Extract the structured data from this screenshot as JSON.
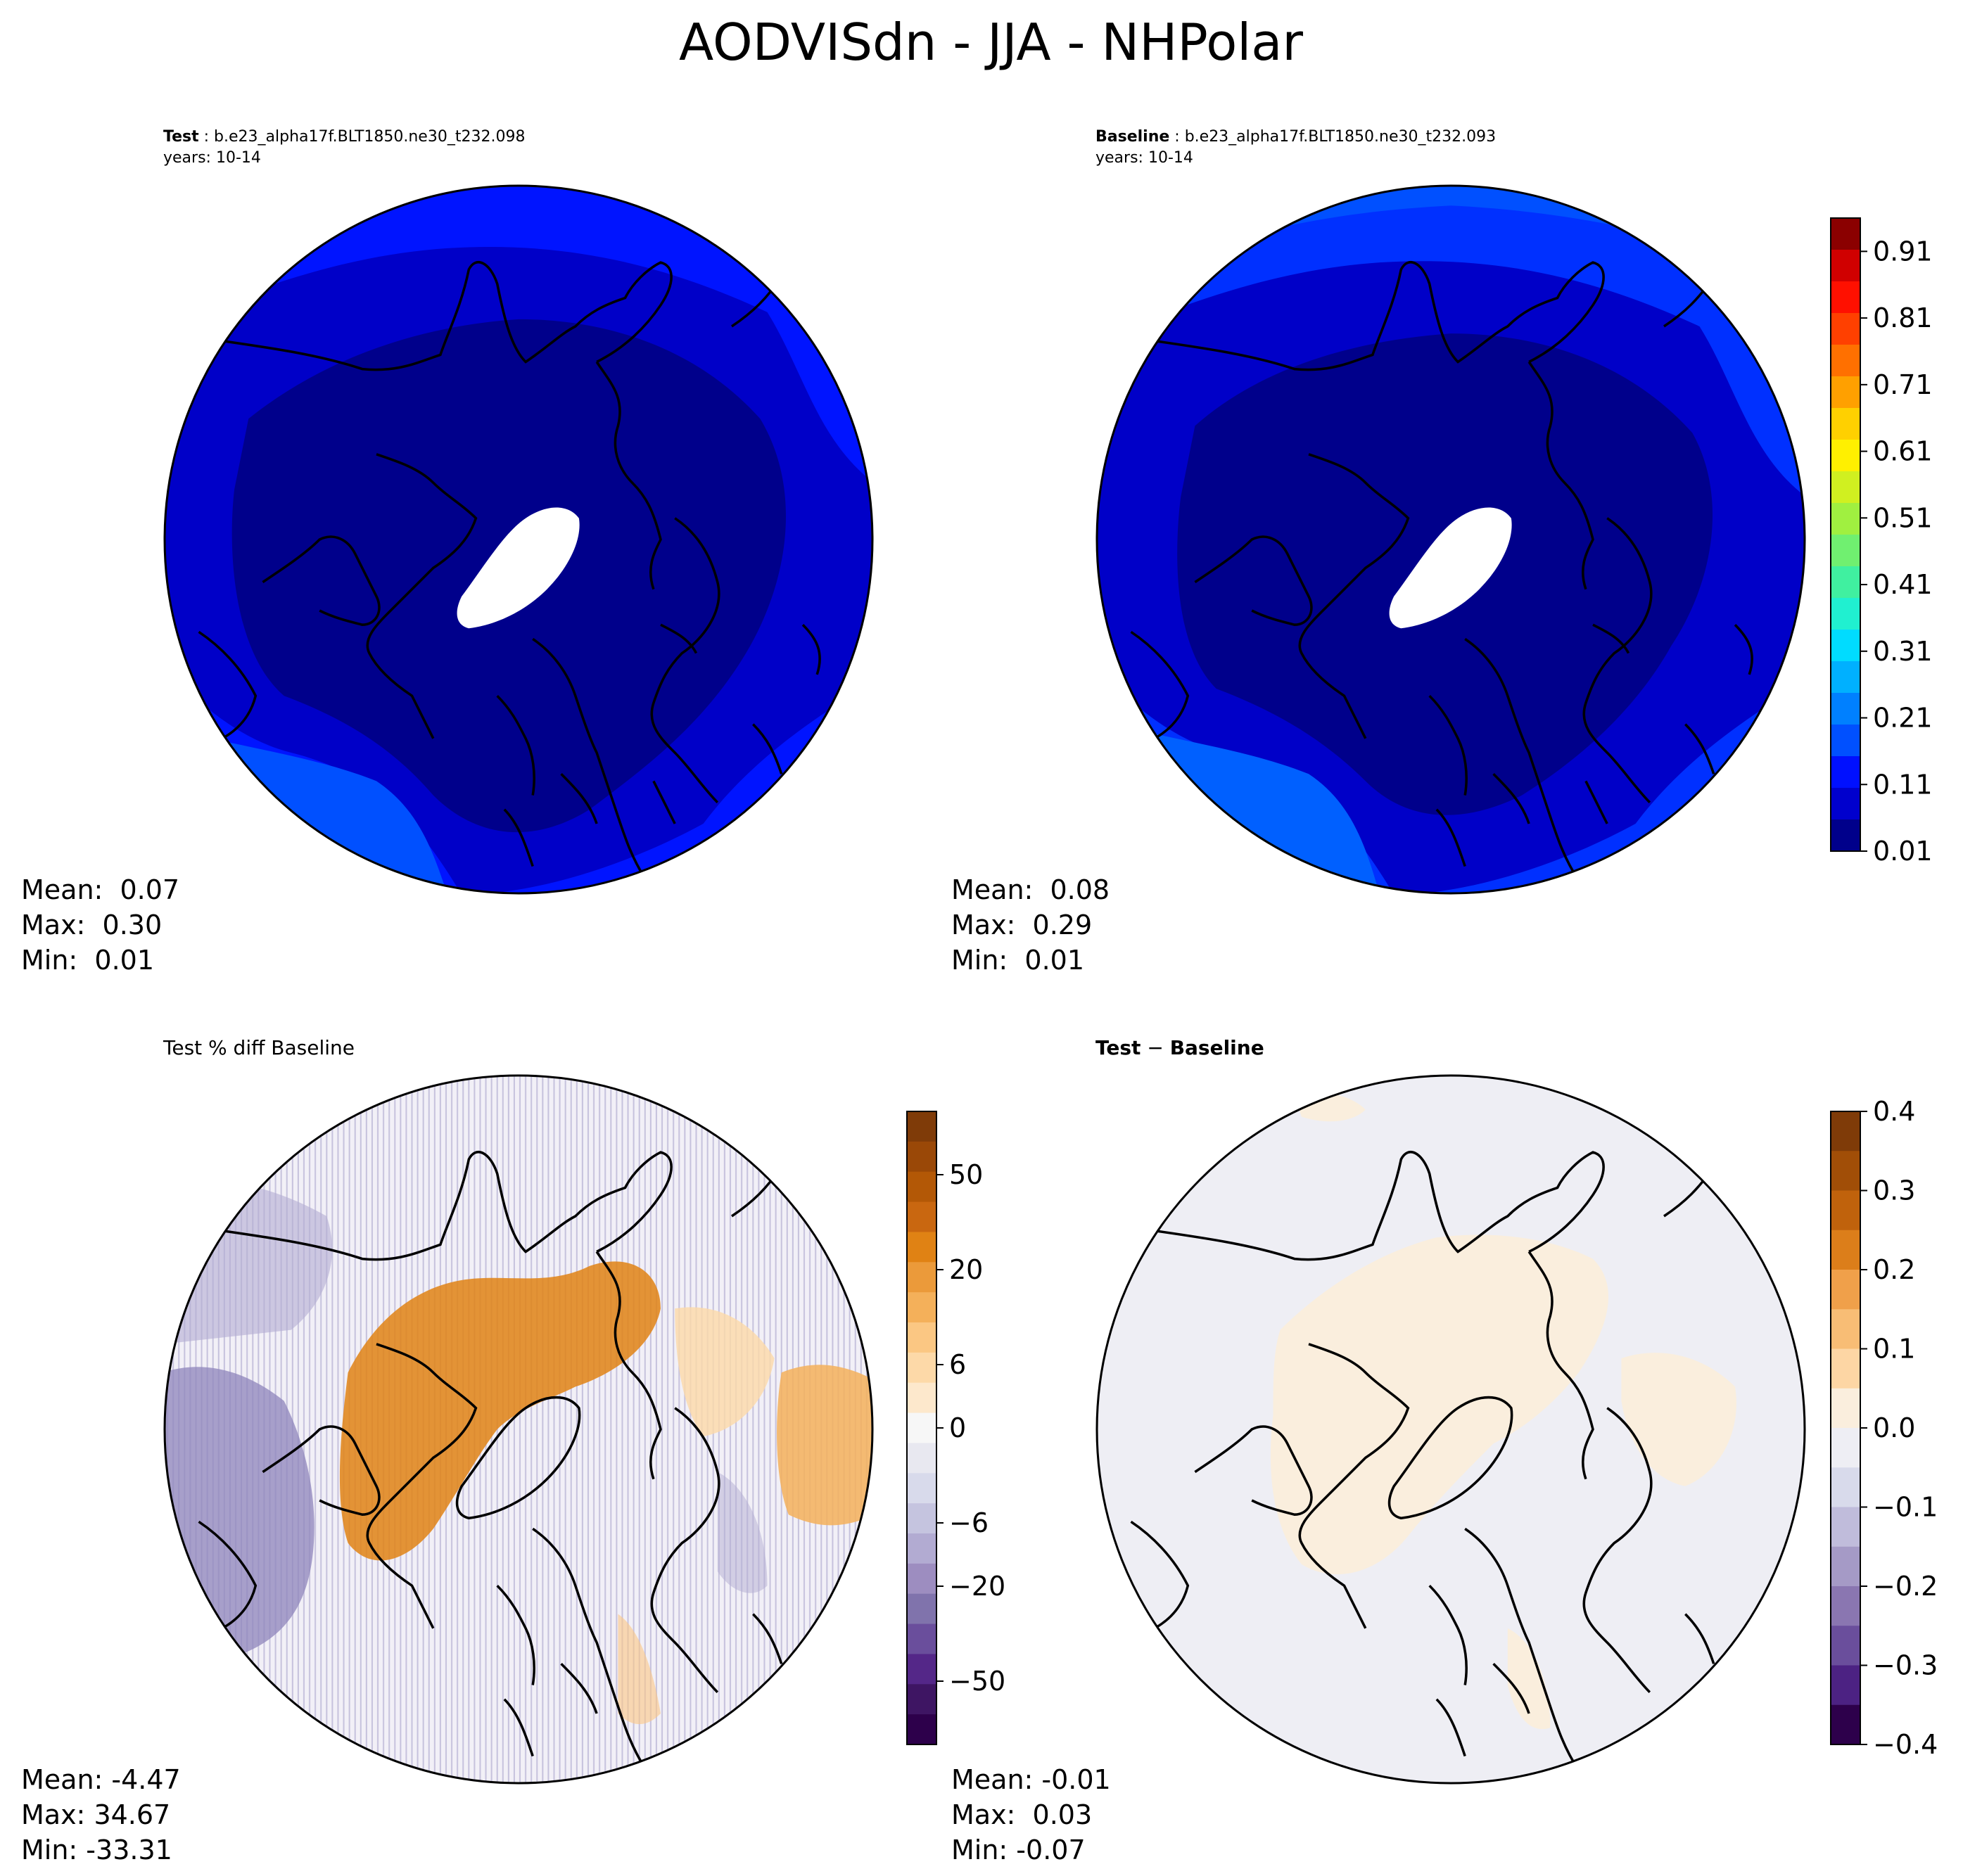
{
  "suptitle": "AODVISdn - JJA - NHPolar",
  "panels": {
    "test": {
      "label_bold": "Test",
      "case": " : b.e23_alpha17f.BLT1850.ne30_t232.098",
      "years": "years: 10-14",
      "stats": {
        "mean": "Mean:  0.07",
        "max": "Max:  0.30",
        "min": "Min:  0.01"
      }
    },
    "baseline": {
      "label_bold": "Baseline",
      "case": " : b.e23_alpha17f.BLT1850.ne30_t232.093",
      "years": "years: 10-14",
      "stats": {
        "mean": "Mean:  0.08",
        "max": "Max:  0.29",
        "min": "Min:  0.01"
      }
    },
    "pctdiff": {
      "title": "Test % diff Baseline",
      "stats": {
        "mean": "Mean: -4.47",
        "max": "Max: 34.67",
        "min": "Min: -33.31"
      }
    },
    "diff": {
      "title_a": "Test",
      "title_op": " − ",
      "title_b": "Baseline",
      "stats": {
        "mean": "Mean: -0.01",
        "max": "Max:  0.03",
        "min": "Min: -0.07"
      }
    }
  },
  "chart_data": [
    {
      "type": "heatmap",
      "projection": "north polar stereographic",
      "field": "AODVISdn",
      "season": "JJA",
      "panel": "Test",
      "mean": 0.07,
      "max": 0.3,
      "min": 0.01
    },
    {
      "type": "heatmap",
      "projection": "north polar stereographic",
      "field": "AODVISdn",
      "season": "JJA",
      "panel": "Baseline",
      "mean": 0.08,
      "max": 0.29,
      "min": 0.01,
      "colorbar": {
        "ticks": [
          "0.01",
          "0.11",
          "0.21",
          "0.31",
          "0.41",
          "0.51",
          "0.61",
          "0.71",
          "0.81",
          "0.91"
        ],
        "range": [
          0.01,
          0.96
        ],
        "colors": [
          "#00008b",
          "#0000cd",
          "#0010ff",
          "#0050ff",
          "#0080ff",
          "#00b0ff",
          "#00dcff",
          "#20f0d0",
          "#40f0a0",
          "#70f070",
          "#a0f040",
          "#d0f020",
          "#fff000",
          "#ffd000",
          "#ffa000",
          "#ff7000",
          "#ff4000",
          "#ff1000",
          "#d00000",
          "#8b0000"
        ]
      }
    },
    {
      "type": "heatmap",
      "projection": "north polar stereographic",
      "panel": "Test % diff Baseline",
      "mean": -4.47,
      "max": 34.67,
      "min": -33.31,
      "colorbar": {
        "ticks": [
          "50",
          "20",
          "6",
          "0",
          "−6",
          "−20",
          "−50"
        ],
        "range": [
          -100,
          100
        ],
        "colors": [
          "#7f3b08",
          "#9a4807",
          "#b35806",
          "#c96710",
          "#e08214",
          "#eb9a3a",
          "#f4b05a",
          "#fbc783",
          "#fdd9a8",
          "#fde8cc",
          "#f7f7f7",
          "#e8e8f0",
          "#d8daeb",
          "#c5c4df",
          "#b2abd2",
          "#9d8dc0",
          "#8073ac",
          "#6a4e9c",
          "#542788",
          "#3e1563",
          "#2d004b"
        ]
      }
    },
    {
      "type": "heatmap",
      "projection": "north polar stereographic",
      "panel": "Test − Baseline",
      "mean": -0.01,
      "max": 0.03,
      "min": -0.07,
      "colorbar": {
        "ticks": [
          "0.4",
          "0.3",
          "0.2",
          "0.1",
          "0.0",
          "−0.1",
          "−0.2",
          "−0.3",
          "−0.4"
        ],
        "range": [
          -0.4,
          0.4
        ],
        "colors": [
          "#7f3b08",
          "#a14e07",
          "#c0620c",
          "#dc7e1a",
          "#f0a04a",
          "#f8bd75",
          "#fdd6a4",
          "#faeedd",
          "#eeeef4",
          "#d8daeb",
          "#c0bcdb",
          "#a59ac6",
          "#8a76b1",
          "#6a4e9c",
          "#4c2283",
          "#2d004b"
        ]
      }
    }
  ]
}
